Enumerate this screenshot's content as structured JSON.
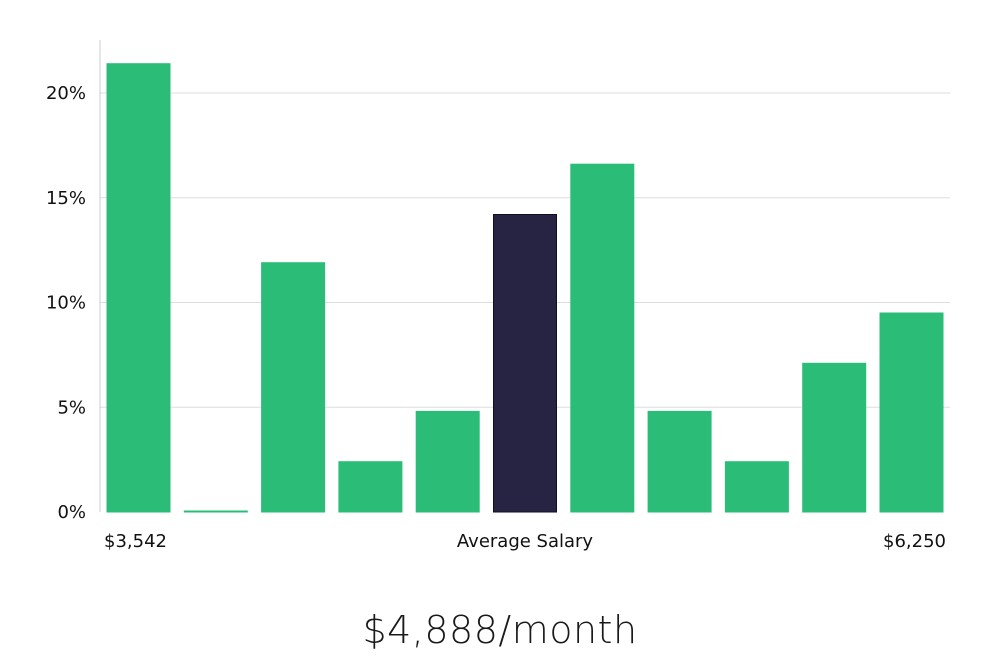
{
  "headline": "$4,888/month",
  "chart_data": {
    "type": "bar",
    "xlabel": "Average Salary",
    "x_start_label": "$3,542",
    "x_end_label": "$6,250",
    "y_tick_labels": [
      "0%",
      "5%",
      "10%",
      "15%",
      "20%"
    ],
    "y_ticks": [
      0,
      5,
      10,
      15,
      20
    ],
    "ylim": [
      0,
      22.5
    ],
    "grid": true,
    "values": [
      21.4,
      0.05,
      11.9,
      2.4,
      4.8,
      14.2,
      16.6,
      4.8,
      2.4,
      7.1,
      9.5
    ],
    "highlight_index": 5,
    "colors": {
      "bar": "#2bbd77",
      "highlight": "#272443",
      "highlight_edge": "#0f0e22",
      "grid": "#dddddd",
      "axis": "#cccccc"
    }
  }
}
